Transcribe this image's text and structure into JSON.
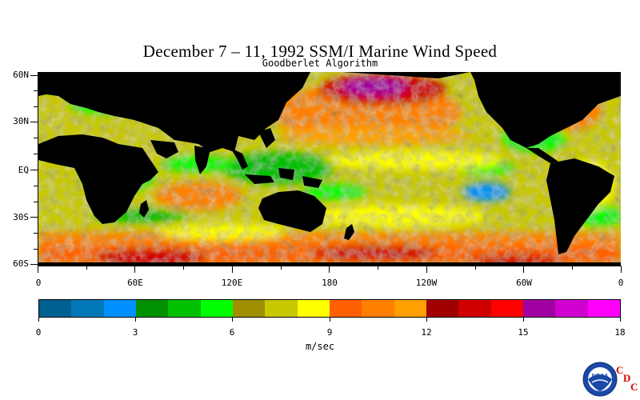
{
  "title": "December 7 – 11, 1992 SSM/I Marine Wind Speed",
  "subtitle": "Goodberlet Algorithm",
  "latitude_labels": [
    "60N",
    "30N",
    "EQ",
    "30S",
    "60S"
  ],
  "longitude_labels": [
    "0",
    "60E",
    "120E",
    "180",
    "120W",
    "60W",
    "0"
  ],
  "colorbar": {
    "colors": [
      "#006090",
      "#0078b8",
      "#0090ff",
      "#009000",
      "#00c000",
      "#00ff00",
      "#a09000",
      "#c8c800",
      "#ffff00",
      "#ff6000",
      "#ff8000",
      "#ffa000",
      "#a00000",
      "#d00000",
      "#ff0000",
      "#a000a0",
      "#d000d0",
      "#ff00ff"
    ],
    "tick_labels": [
      "0",
      "3",
      "6",
      "9",
      "12",
      "15",
      "18"
    ],
    "unit": "m/sec"
  },
  "logo": {
    "icon": "noaa-logo-icon",
    "text": "NOAA",
    "cdc_letters": [
      "C",
      "D",
      "C"
    ]
  },
  "land_color": "#000000"
}
